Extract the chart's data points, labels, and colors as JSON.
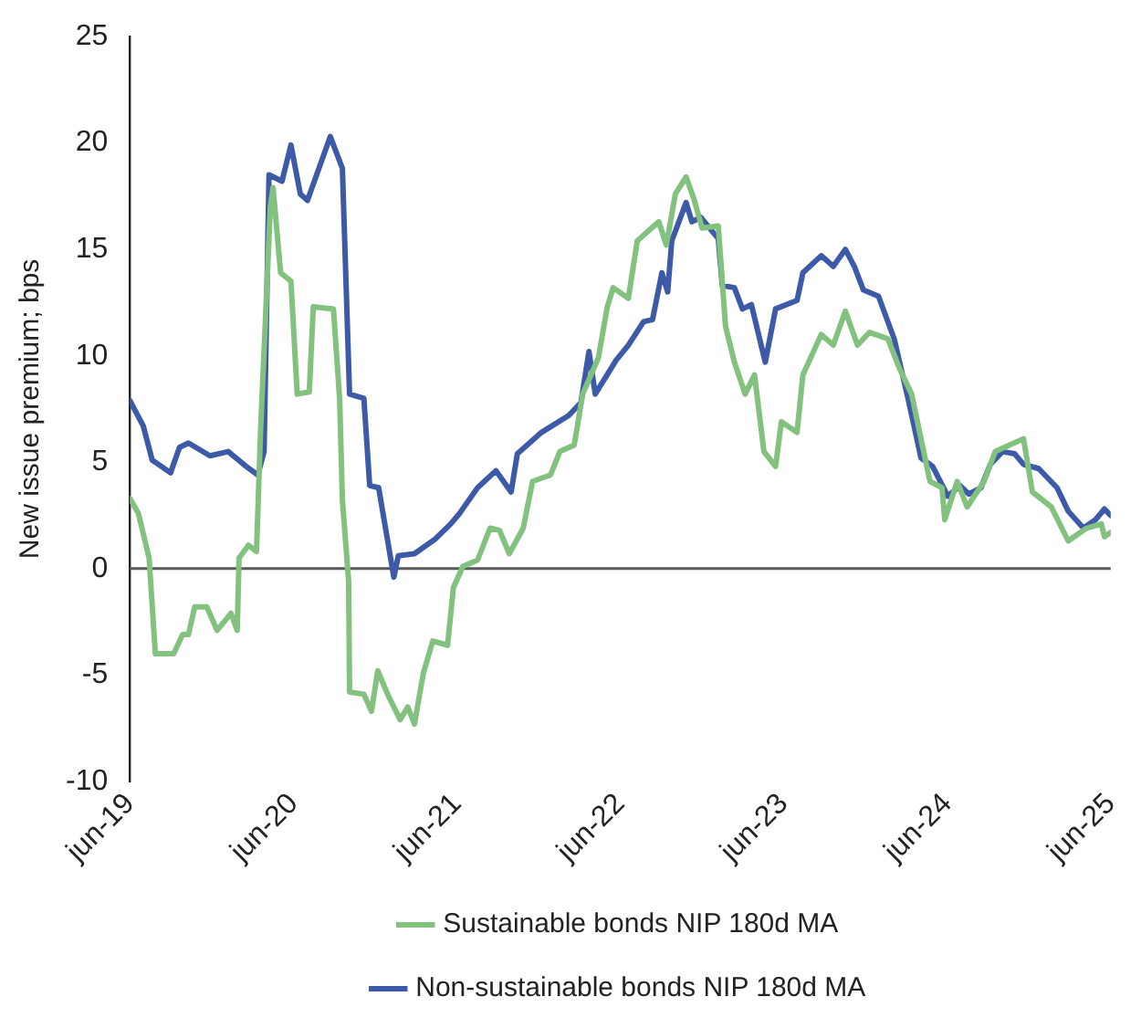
{
  "chart_data": {
    "type": "line",
    "ylabel": "New issue premium; bps",
    "legend": "bottom",
    "grid": false,
    "marker": "none",
    "line_style": "solid",
    "xlim": [
      "2019-06-01",
      "2025-06-01"
    ],
    "xticks": [
      {
        "value": "2019-06-01",
        "label": "jun-19"
      },
      {
        "value": "2020-06-01",
        "label": "jun-20"
      },
      {
        "value": "2021-06-01",
        "label": "jun-21"
      },
      {
        "value": "2022-06-01",
        "label": "jun-22"
      },
      {
        "value": "2023-06-01",
        "label": "jun-23"
      },
      {
        "value": "2024-06-01",
        "label": "jun-24"
      },
      {
        "value": "2025-06-01",
        "label": "jun-25"
      }
    ],
    "ref_lines": [
      {
        "axis": "y",
        "value": 0,
        "color": "#595959"
      }
    ],
    "ylim": [
      -10,
      25
    ],
    "yticks": [
      -10,
      -5,
      0,
      5,
      10,
      15,
      20,
      25
    ],
    "series": [
      {
        "name": "Sustainable bonds NIP 180d MA",
        "color": "#82c17e",
        "x": [
          "2019-06-01",
          "2019-06-20",
          "2019-07-14",
          "2019-07-28",
          "2019-09-07",
          "2019-09-27",
          "2019-10-10",
          "2019-10-24",
          "2019-11-20",
          "2019-12-13",
          "2020-01-13",
          "2020-01-27",
          "2020-01-31",
          "2020-02-21",
          "2020-03-10",
          "2020-03-19",
          "2020-04-10",
          "2020-04-16",
          "2020-05-03",
          "2020-05-26",
          "2020-06-09",
          "2020-07-06",
          "2020-07-15",
          "2020-08-29",
          "2020-09-12",
          "2020-09-18",
          "2020-10-02",
          "2020-10-04",
          "2020-11-05",
          "2020-11-22",
          "2020-12-06",
          "2020-12-28",
          "2021-01-25",
          "2021-02-11",
          "2021-02-26",
          "2021-03-18",
          "2021-04-08",
          "2021-05-11",
          "2021-05-24",
          "2021-06-14",
          "2021-07-17",
          "2021-08-14",
          "2021-09-04",
          "2021-09-26",
          "2021-10-27",
          "2021-11-17",
          "2021-12-27",
          "2022-01-17",
          "2022-02-18",
          "2022-03-09",
          "2022-04-13",
          "2022-05-03",
          "2022-05-16",
          "2022-06-19",
          "2022-07-09",
          "2022-08-26",
          "2022-09-12",
          "2022-10-02",
          "2022-10-26",
          "2022-11-12",
          "2022-12-01",
          "2023-01-06",
          "2023-01-22",
          "2023-02-11",
          "2023-03-07",
          "2023-03-28",
          "2023-04-11",
          "2023-04-18",
          "2023-05-14",
          "2023-05-27",
          "2023-07-01",
          "2023-07-14",
          "2023-08-24",
          "2023-09-20",
          "2023-10-17",
          "2023-11-13",
          "2023-12-10",
          "2024-01-20",
          "2024-02-15",
          "2024-03-13",
          "2024-04-09",
          "2024-04-23",
          "2024-05-20",
          "2024-05-26",
          "2024-06-23",
          "2024-07-15",
          "2024-08-22",
          "2024-09-16",
          "2024-11-18",
          "2024-12-08",
          "2025-01-19",
          "2025-02-26",
          "2025-04-08",
          "2025-05-11",
          "2025-05-18",
          "2025-06-01"
        ],
        "values": [
          3.3,
          2.6,
          0.5,
          -4.0,
          -4.0,
          -3.1,
          -3.1,
          -1.8,
          -1.8,
          -2.9,
          -2.1,
          -2.9,
          0.5,
          1.1,
          0.8,
          6.4,
          17.0,
          17.9,
          13.9,
          13.5,
          8.2,
          8.3,
          12.3,
          12.2,
          7.9,
          3.2,
          -0.6,
          -5.8,
          -5.9,
          -6.7,
          -4.8,
          -5.9,
          -7.1,
          -6.5,
          -7.3,
          -4.9,
          -3.4,
          -3.6,
          -0.9,
          0.1,
          0.4,
          1.9,
          1.8,
          0.7,
          1.9,
          4.1,
          4.4,
          5.5,
          5.8,
          8.2,
          9.9,
          12.3,
          13.2,
          12.7,
          15.4,
          16.3,
          15.2,
          17.6,
          18.4,
          17.4,
          16.0,
          16.1,
          11.4,
          9.7,
          8.2,
          9.1,
          6.7,
          5.5,
          4.8,
          6.9,
          6.4,
          9.1,
          11.0,
          10.5,
          12.1,
          10.5,
          11.1,
          10.8,
          9.4,
          8.2,
          5.5,
          4.1,
          3.8,
          2.3,
          4.1,
          2.9,
          4.1,
          5.5,
          6.1,
          3.6,
          2.9,
          1.3,
          1.9,
          2.1,
          1.5,
          1.7
        ]
      },
      {
        "name": "Non-sustainable bonds NIP 180d MA",
        "color": "#3d5aa8",
        "x": [
          "2019-06-01",
          "2019-07-01",
          "2019-07-21",
          "2019-08-31",
          "2019-09-20",
          "2019-10-10",
          "2019-11-27",
          "2020-01-07",
          "2020-02-16",
          "2020-03-13",
          "2020-03-27",
          "2020-04-07",
          "2020-05-06",
          "2020-05-26",
          "2020-06-16",
          "2020-07-02",
          "2020-08-22",
          "2020-09-18",
          "2020-10-04",
          "2020-11-05",
          "2020-11-18",
          "2020-12-08",
          "2021-01-11",
          "2021-01-21",
          "2021-02-26",
          "2021-04-14",
          "2021-05-18",
          "2021-06-07",
          "2021-07-17",
          "2021-08-27",
          "2021-09-30",
          "2021-10-14",
          "2021-12-07",
          "2022-02-06",
          "2022-03-05",
          "2022-03-23",
          "2022-04-06",
          "2022-05-23",
          "2022-06-19",
          "2022-07-23",
          "2022-08-12",
          "2022-09-02",
          "2022-09-15",
          "2022-09-24",
          "2022-10-26",
          "2022-11-08",
          "2022-11-28",
          "2023-01-06",
          "2023-01-15",
          "2023-02-11",
          "2023-03-01",
          "2023-03-21",
          "2023-04-21",
          "2023-05-14",
          "2023-07-01",
          "2023-07-14",
          "2023-08-24",
          "2023-09-20",
          "2023-10-17",
          "2023-11-06",
          "2023-11-26",
          "2023-12-30",
          "2024-02-03",
          "2024-03-06",
          "2024-04-03",
          "2024-04-29",
          "2024-06-02",
          "2024-06-29",
          "2024-07-19",
          "2024-08-15",
          "2024-09-05",
          "2024-10-02",
          "2024-10-29",
          "2024-11-18",
          "2024-12-22",
          "2025-02-01",
          "2025-02-26",
          "2025-04-01",
          "2025-04-28",
          "2025-05-18",
          "2025-06-01"
        ],
        "values": [
          7.9,
          6.7,
          5.1,
          4.5,
          5.7,
          5.9,
          5.3,
          5.5,
          4.8,
          4.4,
          5.5,
          18.5,
          18.2,
          19.9,
          17.6,
          17.3,
          20.3,
          18.8,
          8.2,
          8.0,
          3.9,
          3.8,
          -0.4,
          0.6,
          0.7,
          1.4,
          2.1,
          2.6,
          3.8,
          4.6,
          3.6,
          5.4,
          6.4,
          7.2,
          7.8,
          10.2,
          8.2,
          9.8,
          10.5,
          11.6,
          11.7,
          13.9,
          13.0,
          15.4,
          17.2,
          16.3,
          16.5,
          15.5,
          13.3,
          13.2,
          12.2,
          12.4,
          9.7,
          12.2,
          12.6,
          13.9,
          14.7,
          14.2,
          15.0,
          14.2,
          13.1,
          12.8,
          10.8,
          7.9,
          5.2,
          4.8,
          3.4,
          3.9,
          3.5,
          3.8,
          4.9,
          5.5,
          5.4,
          4.9,
          4.7,
          3.8,
          2.7,
          1.9,
          2.3,
          2.8,
          2.5
        ]
      }
    ]
  }
}
